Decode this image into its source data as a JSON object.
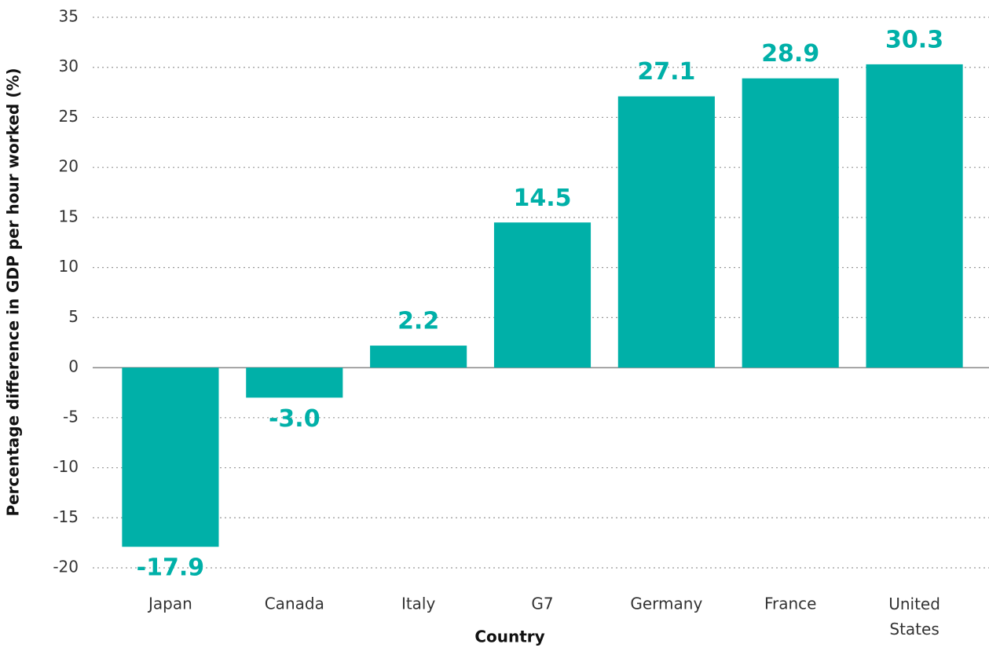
{
  "chart_data": {
    "type": "bar",
    "x_label": "Country",
    "y_label": "Percentage difference in GDP per hour worked (%)",
    "categories": [
      "Japan",
      "Canada",
      "Italy",
      "G7",
      "Germany",
      "France",
      "United States"
    ],
    "values": [
      -17.9,
      -3.0,
      2.2,
      14.5,
      27.1,
      28.9,
      30.3
    ],
    "value_labels": [
      "-17.9",
      "-3.0",
      "2.2",
      "14.5",
      "27.1",
      "28.9",
      "30.3"
    ],
    "color": "#00b0a8",
    "ylim": [
      -20,
      35
    ],
    "yticks": [
      -20,
      -15,
      -10,
      -5,
      0,
      5,
      10,
      15,
      20,
      25,
      30,
      35
    ],
    "grid": true
  }
}
